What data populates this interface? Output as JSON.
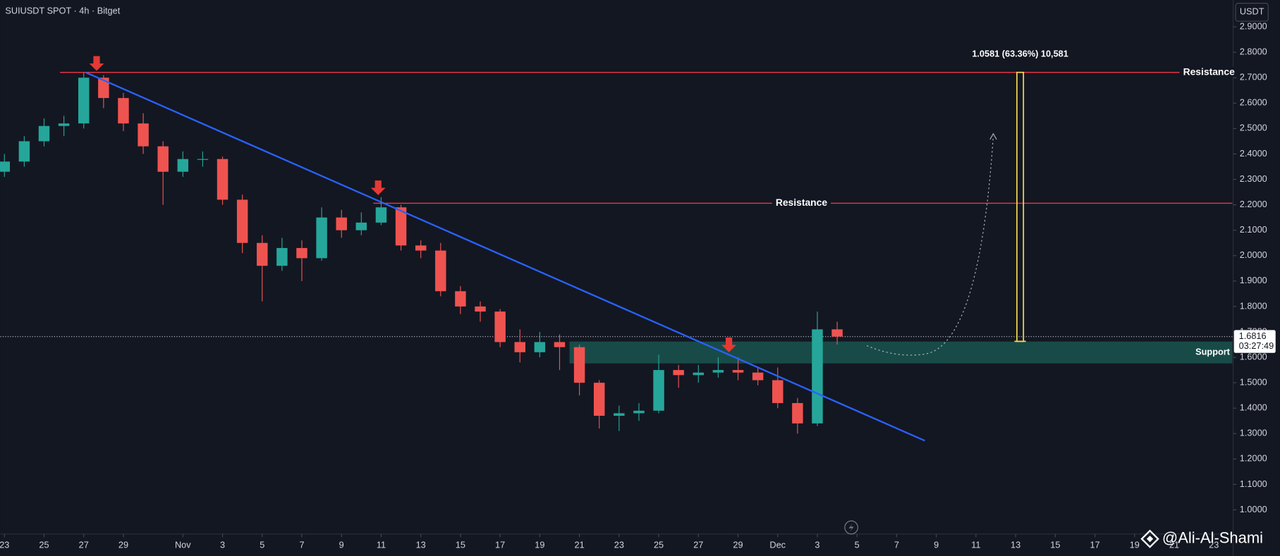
{
  "chart_data": {
    "type": "candlestick",
    "title": "SUIUSDT SPOT · 4h · Bitget",
    "currency": "USDT",
    "up_color": "#26a69a",
    "down_color": "#ef5350",
    "candles": {
      "x": [
        0,
        1,
        2,
        3,
        4,
        5,
        6,
        7,
        8,
        9,
        10,
        11,
        12,
        13,
        14,
        15,
        16,
        17,
        18,
        19,
        20,
        21,
        22,
        23,
        24,
        25,
        26,
        27,
        28,
        29,
        30,
        31,
        32,
        33,
        34,
        35,
        36,
        37,
        38,
        39,
        40,
        41,
        42
      ],
      "open": [
        2.33,
        2.37,
        2.45,
        2.51,
        2.52,
        2.7,
        2.62,
        2.52,
        2.43,
        2.33,
        2.38,
        2.38,
        2.22,
        2.05,
        1.96,
        2.03,
        1.99,
        2.15,
        2.1,
        2.13,
        2.19,
        2.04,
        2.02,
        1.86,
        1.8,
        1.78,
        1.66,
        1.62,
        1.66,
        1.64,
        1.5,
        1.37,
        1.38,
        1.39,
        1.55,
        1.53,
        1.54,
        1.55,
        1.54,
        1.51,
        1.42,
        1.34,
        1.71
      ],
      "high": [
        2.4,
        2.47,
        2.54,
        2.55,
        2.72,
        2.71,
        2.64,
        2.56,
        2.45,
        2.41,
        2.41,
        2.39,
        2.24,
        2.08,
        2.07,
        2.06,
        2.19,
        2.18,
        2.17,
        2.23,
        2.2,
        2.06,
        2.05,
        1.88,
        1.82,
        1.79,
        1.71,
        1.7,
        1.69,
        1.65,
        1.51,
        1.41,
        1.42,
        1.61,
        1.57,
        1.57,
        1.6,
        1.6,
        1.56,
        1.56,
        1.44,
        1.78,
        1.74
      ],
      "low": [
        2.31,
        2.35,
        2.43,
        2.47,
        2.5,
        2.58,
        2.49,
        2.4,
        2.2,
        2.31,
        2.35,
        2.2,
        2.01,
        1.82,
        1.94,
        1.9,
        1.98,
        2.07,
        2.08,
        2.12,
        2.02,
        1.99,
        1.84,
        1.77,
        1.74,
        1.64,
        1.58,
        1.6,
        1.55,
        1.45,
        1.32,
        1.31,
        1.35,
        1.38,
        1.48,
        1.5,
        1.52,
        1.51,
        1.49,
        1.4,
        1.3,
        1.33,
        1.65
      ],
      "close": [
        2.37,
        2.45,
        2.51,
        2.52,
        2.7,
        2.62,
        2.52,
        2.43,
        2.33,
        2.38,
        2.38,
        2.22,
        2.05,
        1.96,
        2.03,
        1.99,
        2.15,
        2.1,
        2.13,
        2.19,
        2.04,
        2.02,
        1.86,
        1.8,
        1.78,
        1.66,
        1.62,
        1.66,
        1.64,
        1.5,
        1.37,
        1.38,
        1.39,
        1.55,
        1.53,
        1.54,
        1.55,
        1.54,
        1.51,
        1.42,
        1.34,
        1.71,
        1.6816
      ]
    },
    "xlim": [
      -0.206,
      61.93
    ],
    "ylim": [
      0.905,
      3.0056
    ],
    "xticks": [
      {
        "value": 0,
        "label": "23"
      },
      {
        "value": 2,
        "label": "25"
      },
      {
        "value": 4,
        "label": "27"
      },
      {
        "value": 6,
        "label": "29"
      },
      {
        "value": 9,
        "label": "Nov"
      },
      {
        "value": 11,
        "label": "3"
      },
      {
        "value": 13,
        "label": "5"
      },
      {
        "value": 15,
        "label": "7"
      },
      {
        "value": 17,
        "label": "9"
      },
      {
        "value": 19,
        "label": "11"
      },
      {
        "value": 21,
        "label": "13"
      },
      {
        "value": 23,
        "label": "15"
      },
      {
        "value": 25,
        "label": "17"
      },
      {
        "value": 27,
        "label": "19"
      },
      {
        "value": 29,
        "label": "21"
      },
      {
        "value": 31,
        "label": "23"
      },
      {
        "value": 33,
        "label": "25"
      },
      {
        "value": 35,
        "label": "27"
      },
      {
        "value": 37,
        "label": "29"
      },
      {
        "value": 39,
        "label": "Dec"
      },
      {
        "value": 41,
        "label": "3"
      },
      {
        "value": 43,
        "label": "5"
      },
      {
        "value": 45,
        "label": "7"
      },
      {
        "value": 47,
        "label": "9"
      },
      {
        "value": 49,
        "label": "11"
      },
      {
        "value": 51,
        "label": "13"
      },
      {
        "value": 53,
        "label": "15"
      },
      {
        "value": 55,
        "label": "17"
      },
      {
        "value": 57,
        "label": "19"
      },
      {
        "value": 59,
        "label": "21"
      },
      {
        "value": 61,
        "label": "23"
      }
    ],
    "yticks": [
      {
        "value": 2.9,
        "label": "2.9000"
      },
      {
        "value": 2.8,
        "label": "2.8000"
      },
      {
        "value": 2.7,
        "label": "2.7000"
      },
      {
        "value": 2.6,
        "label": "2.6000"
      },
      {
        "value": 2.5,
        "label": "2.5000"
      },
      {
        "value": 2.4,
        "label": "2.4000"
      },
      {
        "value": 2.3,
        "label": "2.3000"
      },
      {
        "value": 2.2,
        "label": "2.2000"
      },
      {
        "value": 2.1,
        "label": "2.1000"
      },
      {
        "value": 2.0,
        "label": "2.0000"
      },
      {
        "value": 1.9,
        "label": "1.9000"
      },
      {
        "value": 1.8,
        "label": "1.8000"
      },
      {
        "value": 1.7,
        "label": "1.7000"
      },
      {
        "value": 1.6,
        "label": "1.6000"
      },
      {
        "value": 1.5,
        "label": "1.5000"
      },
      {
        "value": 1.4,
        "label": "1.4000"
      },
      {
        "value": 1.3,
        "label": "1.3000"
      },
      {
        "value": 1.2,
        "label": "1.2000"
      },
      {
        "value": 1.1,
        "label": "1.1000"
      },
      {
        "value": 1.0,
        "label": "1.0000"
      }
    ],
    "current_price": 1.6816,
    "countdown": "03:27:49",
    "levels": [
      {
        "label": "Resistance",
        "value": 2.721,
        "from": 2.8,
        "label_at": 60.75
      },
      {
        "label": "Resistance",
        "value": 2.206,
        "from": 18.6,
        "label_at": 40.2
      }
    ],
    "support": {
      "label": "Support",
      "from": 1.576,
      "to": 1.662,
      "start": 28.5
    },
    "trendline": {
      "x": [
        4.12,
        46.42
      ],
      "y": [
        2.72,
        1.272
      ]
    },
    "measure": {
      "x": 51.23,
      "from": 1.6628,
      "to": 2.7209,
      "label": "1.0581 (63.36%) 10,581"
    },
    "markers": [
      {
        "x": 4.65,
        "y": 2.727
      },
      {
        "x": 18.85,
        "y": 2.238
      },
      {
        "x": 36.54,
        "y": 1.62
      }
    ],
    "watermark": "@Ali-Al-Shami"
  }
}
